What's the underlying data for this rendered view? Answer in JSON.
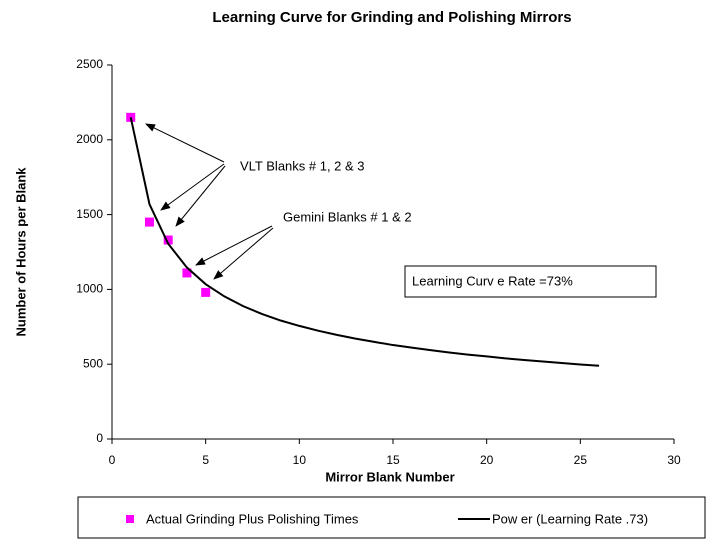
{
  "chart_data": {
    "type": "scatter",
    "title": "Learning Curve for Grinding and Polishing Mirrors",
    "xlabel": "Mirror Blank Number",
    "ylabel": "Number of Hours per Blank",
    "xlim": [
      0,
      30
    ],
    "xticks": [
      0,
      5,
      10,
      15,
      20,
      25,
      30
    ],
    "ylim": [
      0,
      2500
    ],
    "yticks": [
      0,
      500,
      1000,
      1500,
      2000,
      2500
    ],
    "grid": false,
    "legend": "bottom",
    "annotations": [
      "VLT Blanks # 1, 2 & 3",
      "Gemini Blanks # 1 & 2",
      "Learning Curv e Rate =73%"
    ],
    "series": [
      {
        "name": "Actual Grinding Plus Polishing Times",
        "type": "scatter",
        "color": "#ff00ff",
        "x": [
          1,
          2,
          3,
          4,
          5
        ],
        "values": [
          2150,
          1450,
          1330,
          1110,
          980
        ]
      },
      {
        "name": "Pow er (Learning Rate .73)",
        "type": "line",
        "color": "#000000",
        "x": [
          1,
          2,
          3,
          4,
          5,
          6,
          7,
          8,
          9,
          10,
          11,
          12,
          13,
          14,
          15,
          16,
          17,
          18,
          19,
          20,
          21,
          22,
          23,
          24,
          25,
          26
        ],
        "values": [
          2150,
          1570,
          1305,
          1146,
          1035,
          953,
          888,
          836,
          792,
          756,
          724,
          696,
          671,
          649,
          628,
          611,
          594,
          578,
          564,
          552,
          539,
          528,
          518,
          508,
          498,
          490
        ]
      }
    ]
  }
}
